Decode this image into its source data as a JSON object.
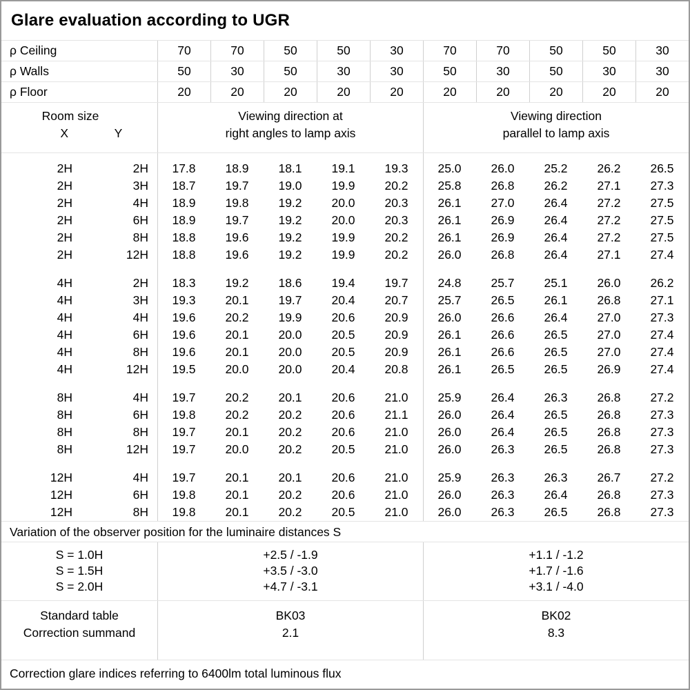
{
  "title": "Glare evaluation according to UGR",
  "colors": {
    "text": "#000000",
    "background": "#ffffff",
    "frame": "#999999",
    "grid_v": "#cfcfcf",
    "grid_h": "#e4e4e4"
  },
  "reflectances": {
    "rows": [
      {
        "label": "ρ Ceiling",
        "values": [
          "70",
          "70",
          "50",
          "50",
          "30",
          "70",
          "70",
          "50",
          "50",
          "30"
        ]
      },
      {
        "label": "ρ Walls",
        "values": [
          "50",
          "30",
          "50",
          "30",
          "30",
          "50",
          "30",
          "50",
          "30",
          "30"
        ]
      },
      {
        "label": "ρ Floor",
        "values": [
          "20",
          "20",
          "20",
          "20",
          "20",
          "20",
          "20",
          "20",
          "20",
          "20"
        ]
      }
    ]
  },
  "header": {
    "room_size_label": "Room size",
    "x_label": "X",
    "y_label": "Y",
    "group_right_angles_line1": "Viewing direction at",
    "group_right_angles_line2": "right angles to lamp axis",
    "group_parallel_line1": "Viewing direction",
    "group_parallel_line2": "parallel to lamp axis"
  },
  "ugr_groups": [
    {
      "rows": [
        {
          "x": "2H",
          "y": "2H",
          "values": [
            "17.8",
            "18.9",
            "18.1",
            "19.1",
            "19.3",
            "25.0",
            "26.0",
            "25.2",
            "26.2",
            "26.5"
          ]
        },
        {
          "x": "2H",
          "y": "3H",
          "values": [
            "18.7",
            "19.7",
            "19.0",
            "19.9",
            "20.2",
            "25.8",
            "26.8",
            "26.2",
            "27.1",
            "27.3"
          ]
        },
        {
          "x": "2H",
          "y": "4H",
          "values": [
            "18.9",
            "19.8",
            "19.2",
            "20.0",
            "20.3",
            "26.1",
            "27.0",
            "26.4",
            "27.2",
            "27.5"
          ]
        },
        {
          "x": "2H",
          "y": "6H",
          "values": [
            "18.9",
            "19.7",
            "19.2",
            "20.0",
            "20.3",
            "26.1",
            "26.9",
            "26.4",
            "27.2",
            "27.5"
          ]
        },
        {
          "x": "2H",
          "y": "8H",
          "values": [
            "18.8",
            "19.6",
            "19.2",
            "19.9",
            "20.2",
            "26.1",
            "26.9",
            "26.4",
            "27.2",
            "27.5"
          ]
        },
        {
          "x": "2H",
          "y": "12H",
          "values": [
            "18.8",
            "19.6",
            "19.2",
            "19.9",
            "20.2",
            "26.0",
            "26.8",
            "26.4",
            "27.1",
            "27.4"
          ]
        }
      ]
    },
    {
      "rows": [
        {
          "x": "4H",
          "y": "2H",
          "values": [
            "18.3",
            "19.2",
            "18.6",
            "19.4",
            "19.7",
            "24.8",
            "25.7",
            "25.1",
            "26.0",
            "26.2"
          ]
        },
        {
          "x": "4H",
          "y": "3H",
          "values": [
            "19.3",
            "20.1",
            "19.7",
            "20.4",
            "20.7",
            "25.7",
            "26.5",
            "26.1",
            "26.8",
            "27.1"
          ]
        },
        {
          "x": "4H",
          "y": "4H",
          "values": [
            "19.6",
            "20.2",
            "19.9",
            "20.6",
            "20.9",
            "26.0",
            "26.6",
            "26.4",
            "27.0",
            "27.3"
          ]
        },
        {
          "x": "4H",
          "y": "6H",
          "values": [
            "19.6",
            "20.1",
            "20.0",
            "20.5",
            "20.9",
            "26.1",
            "26.6",
            "26.5",
            "27.0",
            "27.4"
          ]
        },
        {
          "x": "4H",
          "y": "8H",
          "values": [
            "19.6",
            "20.1",
            "20.0",
            "20.5",
            "20.9",
            "26.1",
            "26.6",
            "26.5",
            "27.0",
            "27.4"
          ]
        },
        {
          "x": "4H",
          "y": "12H",
          "values": [
            "19.5",
            "20.0",
            "20.0",
            "20.4",
            "20.8",
            "26.1",
            "26.5",
            "26.5",
            "26.9",
            "27.4"
          ]
        }
      ]
    },
    {
      "rows": [
        {
          "x": "8H",
          "y": "4H",
          "values": [
            "19.7",
            "20.2",
            "20.1",
            "20.6",
            "21.0",
            "25.9",
            "26.4",
            "26.3",
            "26.8",
            "27.2"
          ]
        },
        {
          "x": "8H",
          "y": "6H",
          "values": [
            "19.8",
            "20.2",
            "20.2",
            "20.6",
            "21.1",
            "26.0",
            "26.4",
            "26.5",
            "26.8",
            "27.3"
          ]
        },
        {
          "x": "8H",
          "y": "8H",
          "values": [
            "19.7",
            "20.1",
            "20.2",
            "20.6",
            "21.0",
            "26.0",
            "26.4",
            "26.5",
            "26.8",
            "27.3"
          ]
        },
        {
          "x": "8H",
          "y": "12H",
          "values": [
            "19.7",
            "20.0",
            "20.2",
            "20.5",
            "21.0",
            "26.0",
            "26.3",
            "26.5",
            "26.8",
            "27.3"
          ]
        }
      ]
    },
    {
      "rows": [
        {
          "x": "12H",
          "y": "4H",
          "values": [
            "19.7",
            "20.1",
            "20.1",
            "20.6",
            "21.0",
            "25.9",
            "26.3",
            "26.3",
            "26.7",
            "27.2"
          ]
        },
        {
          "x": "12H",
          "y": "6H",
          "values": [
            "19.8",
            "20.1",
            "20.2",
            "20.6",
            "21.0",
            "26.0",
            "26.3",
            "26.4",
            "26.8",
            "27.3"
          ]
        },
        {
          "x": "12H",
          "y": "8H",
          "values": [
            "19.8",
            "20.1",
            "20.2",
            "20.5",
            "21.0",
            "26.0",
            "26.3",
            "26.5",
            "26.8",
            "27.3"
          ]
        }
      ]
    }
  ],
  "variation_note": "Variation of the observer position for the luminaire distances S",
  "variation": {
    "s_labels": [
      "S = 1.0H",
      "S = 1.5H",
      "S = 2.0H"
    ],
    "right_angles": [
      "+2.5 / -1.9",
      "+3.5 / -3.0",
      "+4.7 / -3.1"
    ],
    "parallel": [
      "+1.1 / -1.2",
      "+1.7 / -1.6",
      "+3.1 / -4.0"
    ]
  },
  "standard": {
    "table_label": "Standard table",
    "summand_label": "Correction summand",
    "right_angles_table": "BK03",
    "right_angles_summand": "2.1",
    "parallel_table": "BK02",
    "parallel_summand": "8.3"
  },
  "footer_note": "Correction glare indices referring to 6400lm total luminous flux"
}
